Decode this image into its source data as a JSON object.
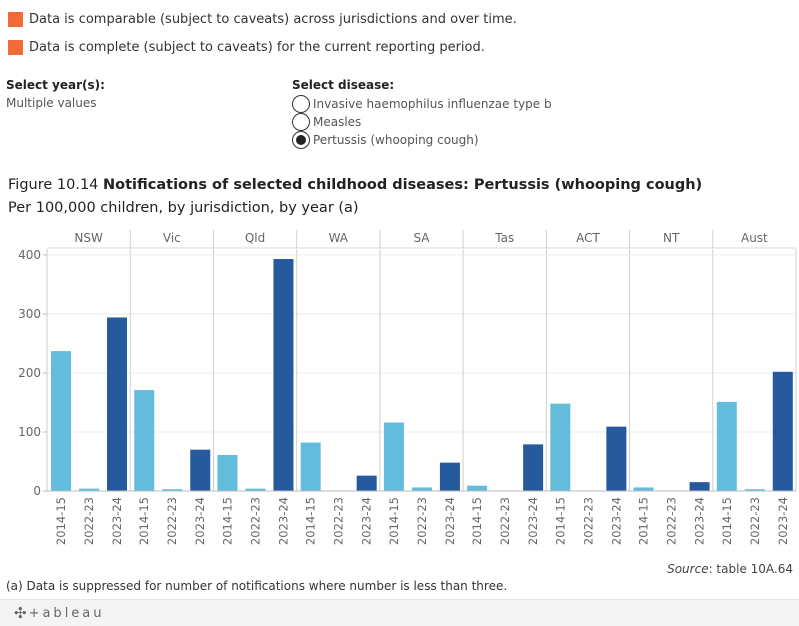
{
  "legend": {
    "comparable": "Data is comparable (subject to caveats) across jurisdictions and over time.",
    "complete": "Data is complete (subject to caveats) for the current reporting period.",
    "color": "#f26b36"
  },
  "filters": {
    "year_label": "Select year(s):",
    "year_value": "Multiple values",
    "disease_label": "Select disease:",
    "diseases": [
      {
        "label": "Invasive haemophilus influenzae type b",
        "selected": false
      },
      {
        "label": "Measles",
        "selected": false
      },
      {
        "label": "Pertussis (whooping cough)",
        "selected": true
      }
    ]
  },
  "figure": {
    "title_prefix": "Figure 10.14 ",
    "title_bold": "Notifications of selected childhood diseases: Pertussis (whooping cough)",
    "subtitle": "Per 100,000 children, by jurisdiction, by year (a)"
  },
  "chart_data": {
    "type": "bar",
    "jurisdictions": [
      "NSW",
      "Vic",
      "Qld",
      "WA",
      "SA",
      "Tas",
      "ACT",
      "NT",
      "Aust"
    ],
    "years": [
      "2014-15",
      "2022-23",
      "2023-24"
    ],
    "year_colors": [
      "#63bcdc",
      "#63bcdc",
      "#265a9c"
    ],
    "values": {
      "NSW": [
        237,
        4,
        294
      ],
      "Vic": [
        171,
        3,
        70
      ],
      "Qld": [
        61,
        4,
        393
      ],
      "WA": [
        82,
        0,
        26
      ],
      "SA": [
        116,
        6,
        48
      ],
      "Tas": [
        9,
        0,
        79
      ],
      "ACT": [
        148,
        0,
        109
      ],
      "NT": [
        6,
        0,
        15
      ],
      "Aust": [
        151,
        3,
        202
      ]
    },
    "yticks": [
      0,
      100,
      200,
      300,
      400
    ],
    "ylim": [
      0,
      410
    ],
    "grid": true
  },
  "source": {
    "label": "Source",
    "text": ": table 10A.64"
  },
  "footnote": "(a) Data is suppressed for number of notifications where number is less than three.",
  "footer": {
    "logo_text": "+ableau",
    "logo_icon": "tableau-cross-icon"
  }
}
